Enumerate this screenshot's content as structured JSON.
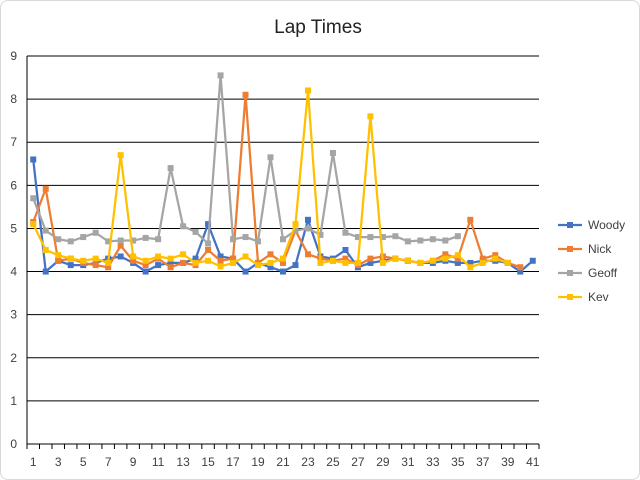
{
  "chart_data": {
    "type": "line",
    "title": "Lap Times",
    "xlabel": "",
    "ylabel": "",
    "ylim": [
      0,
      9
    ],
    "y_ticks": [
      0,
      1,
      2,
      3,
      4,
      5,
      6,
      7,
      8,
      9
    ],
    "x": [
      1,
      2,
      3,
      4,
      5,
      6,
      7,
      8,
      9,
      10,
      11,
      12,
      13,
      14,
      15,
      16,
      17,
      18,
      19,
      20,
      21,
      22,
      23,
      24,
      25,
      26,
      27,
      28,
      29,
      30,
      31,
      32,
      33,
      34,
      35,
      36,
      37,
      38,
      39,
      40,
      41
    ],
    "x_tick_labels": [
      1,
      3,
      5,
      7,
      9,
      11,
      13,
      15,
      17,
      19,
      21,
      23,
      25,
      27,
      29,
      31,
      33,
      35,
      37,
      39,
      41
    ],
    "grid": "horizontal",
    "legend_position": "right",
    "series": [
      {
        "name": "Woody",
        "color": "#4472C4",
        "marker": "square",
        "values": [
          6.6,
          4.0,
          4.25,
          4.15,
          4.15,
          4.2,
          4.3,
          4.35,
          4.2,
          4.0,
          4.15,
          4.2,
          4.2,
          4.3,
          5.1,
          4.35,
          4.3,
          4.0,
          4.2,
          4.1,
          4.0,
          4.15,
          5.2,
          4.35,
          4.3,
          4.5,
          4.1,
          4.2,
          4.25,
          4.3,
          4.25,
          4.2,
          4.2,
          4.25,
          4.2,
          4.2,
          4.25,
          4.25,
          4.2,
          4.0,
          4.25
        ]
      },
      {
        "name": "Nick",
        "color": "#ED7D31",
        "marker": "square",
        "values": [
          5.15,
          5.92,
          4.25,
          4.3,
          4.2,
          4.15,
          4.1,
          4.6,
          4.25,
          4.15,
          4.3,
          4.1,
          4.2,
          4.15,
          4.5,
          4.25,
          4.3,
          8.1,
          4.2,
          4.4,
          4.2,
          4.95,
          4.4,
          4.3,
          4.25,
          4.3,
          4.15,
          4.3,
          4.35,
          4.3,
          4.25,
          4.2,
          4.25,
          4.4,
          4.3,
          5.2,
          4.3,
          4.38,
          4.2,
          4.1,
          null
        ]
      },
      {
        "name": "Geoff",
        "color": "#A5A5A5",
        "marker": "square",
        "values": [
          5.7,
          4.95,
          4.75,
          4.7,
          4.8,
          4.9,
          4.7,
          4.72,
          4.72,
          4.78,
          4.75,
          6.4,
          5.05,
          4.92,
          4.65,
          8.55,
          4.75,
          4.8,
          4.7,
          6.65,
          4.75,
          4.95,
          5.0,
          4.85,
          6.75,
          4.9,
          4.8,
          4.8,
          4.8,
          4.82,
          4.7,
          4.72,
          4.75,
          4.72,
          4.82,
          null,
          null,
          null,
          null,
          null,
          null
        ]
      },
      {
        "name": "Kev",
        "color": "#FFC000",
        "marker": "square",
        "values": [
          5.1,
          4.5,
          4.38,
          4.3,
          4.25,
          4.3,
          4.2,
          6.7,
          4.35,
          4.25,
          4.35,
          4.3,
          4.4,
          4.2,
          4.25,
          4.12,
          4.2,
          4.35,
          4.15,
          4.2,
          4.3,
          5.1,
          8.2,
          4.2,
          4.25,
          4.2,
          4.2,
          7.6,
          4.2,
          4.3,
          4.25,
          4.2,
          4.25,
          4.3,
          4.38,
          4.1,
          4.2,
          4.3,
          4.2,
          null,
          null
        ]
      }
    ]
  }
}
